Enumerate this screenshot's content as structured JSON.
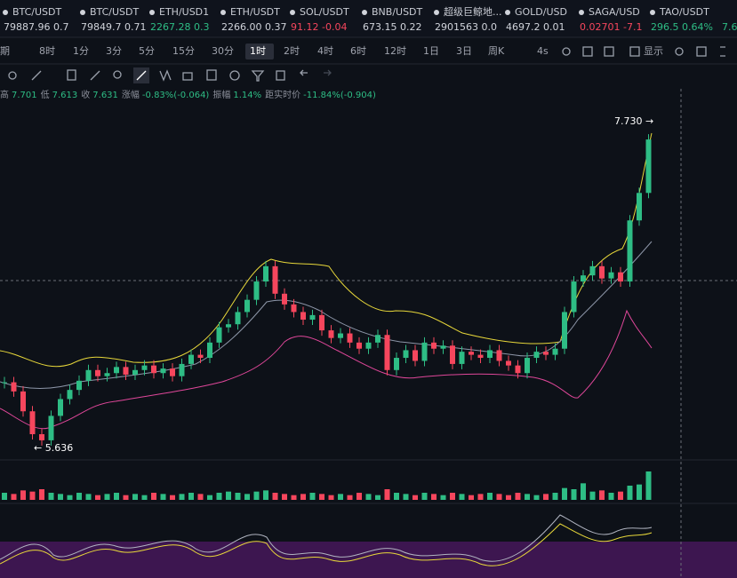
{
  "tickers": [
    {
      "name": "BTC/USDT",
      "quote": "79887.96 0.7"
    },
    {
      "name": "BTC/USDT",
      "quote": "79849.7 0.71"
    },
    {
      "name": "ETH/USD1",
      "quote": "2267.28 0.3"
    },
    {
      "name": "ETH/USDT",
      "quote": "2266.00 0.37"
    },
    {
      "name": "SOL/USDT",
      "quote": "91.12 -0.04"
    },
    {
      "name": "BNB/USDT",
      "quote": "673.15 0.22"
    },
    {
      "name": "超级巨鲸地...",
      "quote": "2901563 0.0"
    },
    {
      "name": "GOLD/USD",
      "quote": "4697.2 0.01"
    },
    {
      "name": "SAGA/USD",
      "quote": "0.02701 -7.1"
    },
    {
      "name": "TAO/USDT",
      "quote": "296.5 0.64%"
    },
    {
      "name": "",
      "quote": "7.6"
    }
  ],
  "timeframes": [
    "期",
    "8时",
    "1分",
    "3分",
    "5分",
    "15分",
    "30分",
    "1时",
    "2时",
    "4时",
    "6时",
    "12时",
    "1日",
    "3日",
    "周K",
    "4s",
    "显示"
  ],
  "active_timeframe": "1时",
  "info": [
    [
      "高",
      "7.701"
    ],
    [
      "低",
      "7.613"
    ],
    [
      "收",
      "7.631"
    ],
    [
      "涨幅",
      "-0.83%(-0.064)"
    ],
    [
      "振幅",
      "1.14%"
    ],
    [
      "距实时价",
      "-11.84%(-0.904)"
    ]
  ],
  "price_chart": {
    "high_label": "7.730 →",
    "low_label": "← 5.636",
    "ylim": [
      5.549,
      7.962
    ],
    "closes": [
      6.04,
      5.98,
      5.85,
      5.7,
      5.66,
      5.82,
      5.93,
      5.99,
      6.05,
      6.12,
      6.08,
      6.1,
      6.14,
      6.09,
      6.12,
      6.15,
      6.1,
      6.13,
      6.08,
      6.16,
      6.22,
      6.2,
      6.3,
      6.4,
      6.42,
      6.5,
      6.58,
      6.7,
      6.8,
      6.62,
      6.55,
      6.5,
      6.45,
      6.48,
      6.38,
      6.33,
      6.36,
      6.3,
      6.26,
      6.3,
      6.35,
      6.12,
      6.2,
      6.25,
      6.18,
      6.3,
      6.26,
      6.28,
      6.16,
      6.24,
      6.22,
      6.2,
      6.25,
      6.18,
      6.15,
      6.1,
      6.2,
      6.24,
      6.22,
      6.26,
      6.5,
      6.7,
      6.74,
      6.8,
      6.72,
      6.76,
      6.7,
      7.1,
      7.28,
      7.63
    ],
    "volumes": [
      6,
      5,
      8,
      7,
      9,
      6,
      5,
      4,
      6,
      5,
      4,
      5,
      6,
      4,
      5,
      4,
      6,
      5,
      4,
      5,
      6,
      5,
      4,
      6,
      7,
      6,
      5,
      7,
      8,
      6,
      5,
      4,
      5,
      6,
      5,
      4,
      5,
      4,
      6,
      5,
      4,
      9,
      6,
      5,
      4,
      6,
      5,
      4,
      6,
      5,
      4,
      5,
      6,
      5,
      4,
      6,
      5,
      4,
      5,
      6,
      10,
      9,
      14,
      7,
      8,
      6,
      7,
      12,
      13,
      24
    ]
  }
}
